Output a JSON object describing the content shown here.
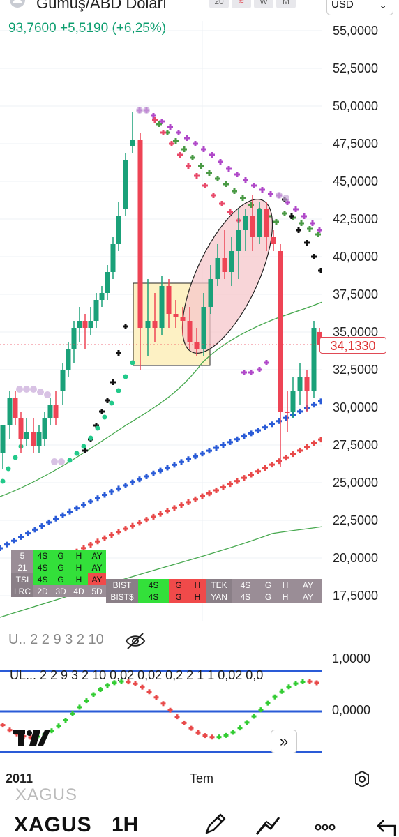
{
  "header": {
    "title": "Gümüş/ABD Doları",
    "timeframes": [
      "20",
      "W",
      "M"
    ],
    "currency": "USD"
  },
  "quote": {
    "last": "93,7600",
    "change": "+5,5190",
    "change_pct": "(+6,25%)",
    "color_up": "#0d9e6f"
  },
  "price_axis": {
    "labels": [
      "55,0000",
      "52,5000",
      "50,0000",
      "47,5000",
      "45,0000",
      "42,5000",
      "40,0000",
      "37,5000",
      "35,0000",
      "32,5000",
      "30,0000",
      "27,5000",
      "25,0000",
      "22,5000",
      "20,0000",
      "17,5000"
    ],
    "current_price": "34,1330",
    "current_price_color": "#d33333"
  },
  "indicator_table_left": [
    [
      "5",
      "4S",
      "G",
      "H",
      "AY"
    ],
    [
      "21",
      "4S",
      "G",
      "H",
      "AY"
    ],
    [
      "TSI",
      "4S",
      "G",
      "H",
      "AY"
    ],
    [
      "LRC",
      "2D",
      "3D",
      "4D",
      "5D"
    ]
  ],
  "indicator_table_mid": [
    [
      "BIST",
      "4S",
      "G",
      "H"
    ],
    [
      "BIST$",
      "4S",
      "G",
      "H"
    ]
  ],
  "indicator_table_right": [
    [
      "TEK",
      "4S",
      "G",
      "H",
      "AY"
    ],
    [
      "YAN",
      "4S",
      "G",
      "H",
      "AY"
    ]
  ],
  "legend_row": "U.. 2 2 9 3 2 10",
  "oscillator": {
    "label": "UL...  2 2 9 3 2 10  0,02  0,02  0,2  2  1  1  0,02  0,0",
    "axis_top": "1,0000",
    "axis_zero": "0,0000"
  },
  "time_axis": {
    "start": "2011",
    "mid": "Tem"
  },
  "bottom_bar": {
    "symbol_ghost": "XAGUS",
    "symbol": "XAGUS",
    "interval": "1H",
    "icons": [
      "pencil-icon",
      "trend-line-icon",
      "more-icon",
      "undo-icon"
    ]
  },
  "colors": {
    "candle_up": "#1aa179",
    "candle_down": "#ee4455",
    "ma_blue": "#2a5bd7",
    "ma_red": "#e84a4a",
    "sar_purple": "#b049c9",
    "sar_green": "#4a9a45",
    "highlight_yellow": "#fdf1c4",
    "highlight_pink": "#f6c7cb"
  }
}
